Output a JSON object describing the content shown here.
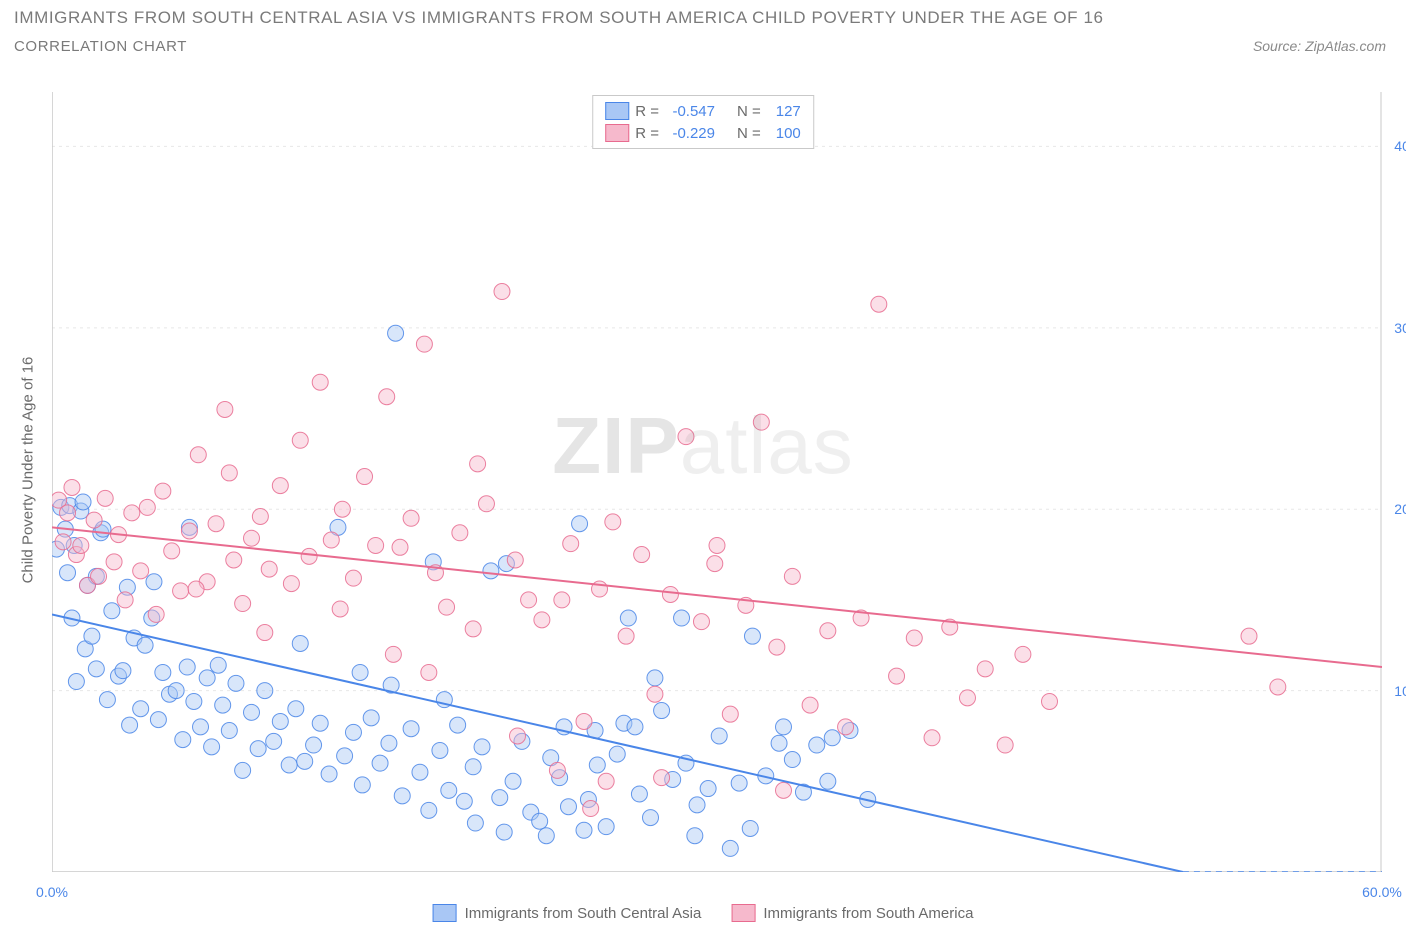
{
  "title": "IMMIGRANTS FROM SOUTH CENTRAL ASIA VS IMMIGRANTS FROM SOUTH AMERICA CHILD POVERTY UNDER THE AGE OF 16",
  "subtitle": "CORRELATION CHART",
  "source_prefix": "Source: ",
  "source": "ZipAtlas.com",
  "watermark_a": "ZIP",
  "watermark_b": "atlas",
  "yaxis": "Child Poverty Under the Age of 16",
  "chart": {
    "type": "scatter",
    "xlim": [
      0,
      60
    ],
    "ylim": [
      0,
      43
    ],
    "y_ticks": [
      10,
      20,
      30,
      40
    ],
    "y_tick_labels": [
      "10.0%",
      "20.0%",
      "30.0%",
      "40.0%"
    ],
    "x_ticks": [
      0,
      10,
      20,
      30,
      40,
      50,
      60
    ],
    "x_tick_labels": [
      "0.0%",
      "",
      "",
      "",
      "",
      "",
      "60.0%"
    ],
    "background_color": "#ffffff",
    "grid_color": "#e7e7e7",
    "axis_color": "#c9c9c9",
    "marker_radius": 8,
    "marker_opacity": 0.45,
    "marker_stroke_opacity": 0.85,
    "line_width": 2,
    "series": [
      {
        "name": "Immigrants from South Central Asia",
        "key": "sca",
        "color": "#4a86e8",
        "fill": "#a9c7f5",
        "R": "-0.547",
        "N": "127",
        "trend": {
          "x1": 0,
          "y1": 14.2,
          "x2": 60,
          "y2": -2.5
        },
        "points": [
          [
            0.2,
            17.8
          ],
          [
            0.4,
            20.1
          ],
          [
            0.6,
            18.9
          ],
          [
            0.7,
            16.5
          ],
          [
            0.8,
            20.2
          ],
          [
            0.9,
            14.0
          ],
          [
            1.0,
            18.0
          ],
          [
            1.1,
            10.5
          ],
          [
            1.3,
            19.9
          ],
          [
            1.5,
            12.3
          ],
          [
            1.6,
            15.8
          ],
          [
            1.8,
            13.0
          ],
          [
            2.0,
            11.2
          ],
          [
            2.2,
            18.7
          ],
          [
            2.5,
            9.5
          ],
          [
            2.7,
            14.4
          ],
          [
            3.0,
            10.8
          ],
          [
            3.2,
            11.1
          ],
          [
            3.5,
            8.1
          ],
          [
            3.7,
            12.9
          ],
          [
            4.0,
            9.0
          ],
          [
            4.2,
            12.5
          ],
          [
            4.5,
            14.0
          ],
          [
            4.8,
            8.4
          ],
          [
            5.0,
            11.0
          ],
          [
            5.3,
            9.8
          ],
          [
            5.6,
            10.0
          ],
          [
            5.9,
            7.3
          ],
          [
            6.1,
            11.3
          ],
          [
            6.4,
            9.4
          ],
          [
            6.7,
            8.0
          ],
          [
            7.0,
            10.7
          ],
          [
            7.2,
            6.9
          ],
          [
            7.5,
            11.4
          ],
          [
            7.7,
            9.2
          ],
          [
            8.0,
            7.8
          ],
          [
            8.3,
            10.4
          ],
          [
            8.6,
            5.6
          ],
          [
            9.0,
            8.8
          ],
          [
            9.3,
            6.8
          ],
          [
            9.6,
            10.0
          ],
          [
            10.0,
            7.2
          ],
          [
            10.3,
            8.3
          ],
          [
            10.7,
            5.9
          ],
          [
            11.0,
            9.0
          ],
          [
            11.4,
            6.1
          ],
          [
            11.8,
            7.0
          ],
          [
            12.1,
            8.2
          ],
          [
            12.5,
            5.4
          ],
          [
            12.9,
            19.0
          ],
          [
            13.2,
            6.4
          ],
          [
            13.6,
            7.7
          ],
          [
            14.0,
            4.8
          ],
          [
            14.4,
            8.5
          ],
          [
            14.8,
            6.0
          ],
          [
            15.2,
            7.1
          ],
          [
            15.5,
            29.7
          ],
          [
            15.8,
            4.2
          ],
          [
            16.2,
            7.9
          ],
          [
            16.6,
            5.5
          ],
          [
            17.0,
            3.4
          ],
          [
            17.5,
            6.7
          ],
          [
            17.9,
            4.5
          ],
          [
            18.3,
            8.1
          ],
          [
            18.6,
            3.9
          ],
          [
            19.0,
            5.8
          ],
          [
            19.4,
            6.9
          ],
          [
            19.8,
            16.6
          ],
          [
            20.2,
            4.1
          ],
          [
            20.5,
            17.0
          ],
          [
            20.8,
            5.0
          ],
          [
            21.2,
            7.2
          ],
          [
            21.6,
            3.3
          ],
          [
            22.0,
            2.8
          ],
          [
            22.5,
            6.3
          ],
          [
            22.9,
            5.2
          ],
          [
            23.3,
            3.6
          ],
          [
            23.8,
            19.2
          ],
          [
            24.2,
            4.0
          ],
          [
            24.6,
            5.9
          ],
          [
            25.0,
            2.5
          ],
          [
            25.5,
            6.5
          ],
          [
            26.0,
            14.0
          ],
          [
            26.5,
            4.3
          ],
          [
            27.0,
            3.0
          ],
          [
            27.5,
            8.9
          ],
          [
            28.0,
            5.1
          ],
          [
            28.6,
            6.0
          ],
          [
            29.1,
            3.7
          ],
          [
            29.6,
            4.6
          ],
          [
            30.1,
            7.5
          ],
          [
            30.6,
            1.3
          ],
          [
            31.0,
            4.9
          ],
          [
            31.6,
            13.0
          ],
          [
            32.2,
            5.3
          ],
          [
            32.8,
            7.1
          ],
          [
            33.4,
            6.2
          ],
          [
            33.9,
            4.4
          ],
          [
            34.5,
            7.0
          ],
          [
            35.2,
            7.4
          ],
          [
            36.0,
            7.8
          ],
          [
            36.8,
            4.0
          ],
          [
            27.2,
            10.7
          ],
          [
            28.4,
            14.0
          ],
          [
            17.2,
            17.1
          ],
          [
            23.1,
            8.0
          ],
          [
            24.5,
            7.8
          ],
          [
            25.8,
            8.2
          ],
          [
            6.2,
            19.0
          ],
          [
            11.2,
            12.6
          ],
          [
            13.9,
            11.0
          ],
          [
            15.3,
            10.3
          ],
          [
            17.7,
            9.5
          ],
          [
            19.1,
            2.7
          ],
          [
            20.4,
            2.2
          ],
          [
            22.3,
            2.0
          ],
          [
            24.0,
            2.3
          ],
          [
            26.3,
            8.0
          ],
          [
            29.0,
            2.0
          ],
          [
            31.5,
            2.4
          ],
          [
            33.0,
            8.0
          ],
          [
            35.0,
            5.0
          ],
          [
            2.0,
            16.3
          ],
          [
            3.4,
            15.7
          ],
          [
            4.6,
            16.0
          ],
          [
            2.3,
            18.9
          ],
          [
            1.4,
            20.4
          ]
        ]
      },
      {
        "name": "Immigrants from South America",
        "key": "sa",
        "color": "#e86b8f",
        "fill": "#f6b9cc",
        "R": "-0.229",
        "N": "100",
        "trend": {
          "x1": 0,
          "y1": 19.0,
          "x2": 60,
          "y2": 11.3
        },
        "points": [
          [
            0.3,
            20.5
          ],
          [
            0.5,
            18.2
          ],
          [
            0.7,
            19.8
          ],
          [
            0.9,
            21.2
          ],
          [
            1.1,
            17.5
          ],
          [
            1.3,
            18.0
          ],
          [
            1.6,
            15.8
          ],
          [
            1.9,
            19.4
          ],
          [
            2.1,
            16.3
          ],
          [
            2.4,
            20.6
          ],
          [
            2.8,
            17.1
          ],
          [
            3.0,
            18.6
          ],
          [
            3.3,
            15.0
          ],
          [
            3.6,
            19.8
          ],
          [
            4.0,
            16.6
          ],
          [
            4.3,
            20.1
          ],
          [
            4.7,
            14.2
          ],
          [
            5.0,
            21.0
          ],
          [
            5.4,
            17.7
          ],
          [
            5.8,
            15.5
          ],
          [
            6.2,
            18.8
          ],
          [
            6.6,
            23.0
          ],
          [
            7.0,
            16.0
          ],
          [
            7.4,
            19.2
          ],
          [
            7.8,
            25.5
          ],
          [
            8.2,
            17.2
          ],
          [
            8.6,
            14.8
          ],
          [
            9.0,
            18.4
          ],
          [
            9.4,
            19.6
          ],
          [
            9.8,
            16.7
          ],
          [
            10.3,
            21.3
          ],
          [
            10.8,
            15.9
          ],
          [
            11.2,
            23.8
          ],
          [
            11.6,
            17.4
          ],
          [
            12.1,
            27.0
          ],
          [
            12.6,
            18.3
          ],
          [
            13.1,
            20.0
          ],
          [
            13.6,
            16.2
          ],
          [
            14.1,
            21.8
          ],
          [
            14.6,
            18.0
          ],
          [
            15.1,
            26.2
          ],
          [
            15.7,
            17.9
          ],
          [
            16.2,
            19.5
          ],
          [
            16.8,
            29.1
          ],
          [
            17.3,
            16.5
          ],
          [
            17.8,
            14.6
          ],
          [
            18.4,
            18.7
          ],
          [
            19.0,
            13.4
          ],
          [
            19.6,
            20.3
          ],
          [
            20.3,
            32.0
          ],
          [
            20.9,
            17.2
          ],
          [
            21.5,
            15.0
          ],
          [
            22.1,
            13.9
          ],
          [
            22.8,
            5.6
          ],
          [
            23.4,
            18.1
          ],
          [
            24.0,
            8.3
          ],
          [
            24.7,
            15.6
          ],
          [
            25.3,
            19.3
          ],
          [
            25.9,
            13.0
          ],
          [
            26.6,
            17.5
          ],
          [
            27.2,
            9.8
          ],
          [
            27.9,
            15.3
          ],
          [
            28.6,
            24.0
          ],
          [
            29.3,
            13.8
          ],
          [
            29.9,
            17.0
          ],
          [
            30.6,
            8.7
          ],
          [
            31.3,
            14.7
          ],
          [
            32.0,
            24.8
          ],
          [
            32.7,
            12.4
          ],
          [
            33.4,
            16.3
          ],
          [
            34.2,
            9.2
          ],
          [
            35.0,
            13.3
          ],
          [
            35.8,
            8.0
          ],
          [
            36.5,
            14.0
          ],
          [
            37.3,
            31.3
          ],
          [
            38.1,
            10.8
          ],
          [
            38.9,
            12.9
          ],
          [
            39.7,
            7.4
          ],
          [
            40.5,
            13.5
          ],
          [
            41.3,
            9.6
          ],
          [
            42.1,
            11.2
          ],
          [
            43.0,
            7.0
          ],
          [
            43.8,
            12.0
          ],
          [
            45.0,
            9.4
          ],
          [
            6.5,
            15.6
          ],
          [
            8.0,
            22.0
          ],
          [
            9.6,
            13.2
          ],
          [
            13.0,
            14.5
          ],
          [
            15.4,
            12.0
          ],
          [
            17.0,
            11.0
          ],
          [
            19.2,
            22.5
          ],
          [
            21.0,
            7.5
          ],
          [
            23.0,
            15.0
          ],
          [
            25.0,
            5.0
          ],
          [
            27.5,
            5.2
          ],
          [
            30.0,
            18.0
          ],
          [
            33.0,
            4.5
          ],
          [
            54.0,
            13.0
          ],
          [
            55.3,
            10.2
          ],
          [
            24.3,
            3.5
          ]
        ]
      }
    ]
  },
  "legend": {
    "R_label": "R =",
    "N_label": "N ="
  },
  "bottom_legend": {
    "a": "Immigrants from South Central Asia",
    "b": "Immigrants from South America"
  }
}
